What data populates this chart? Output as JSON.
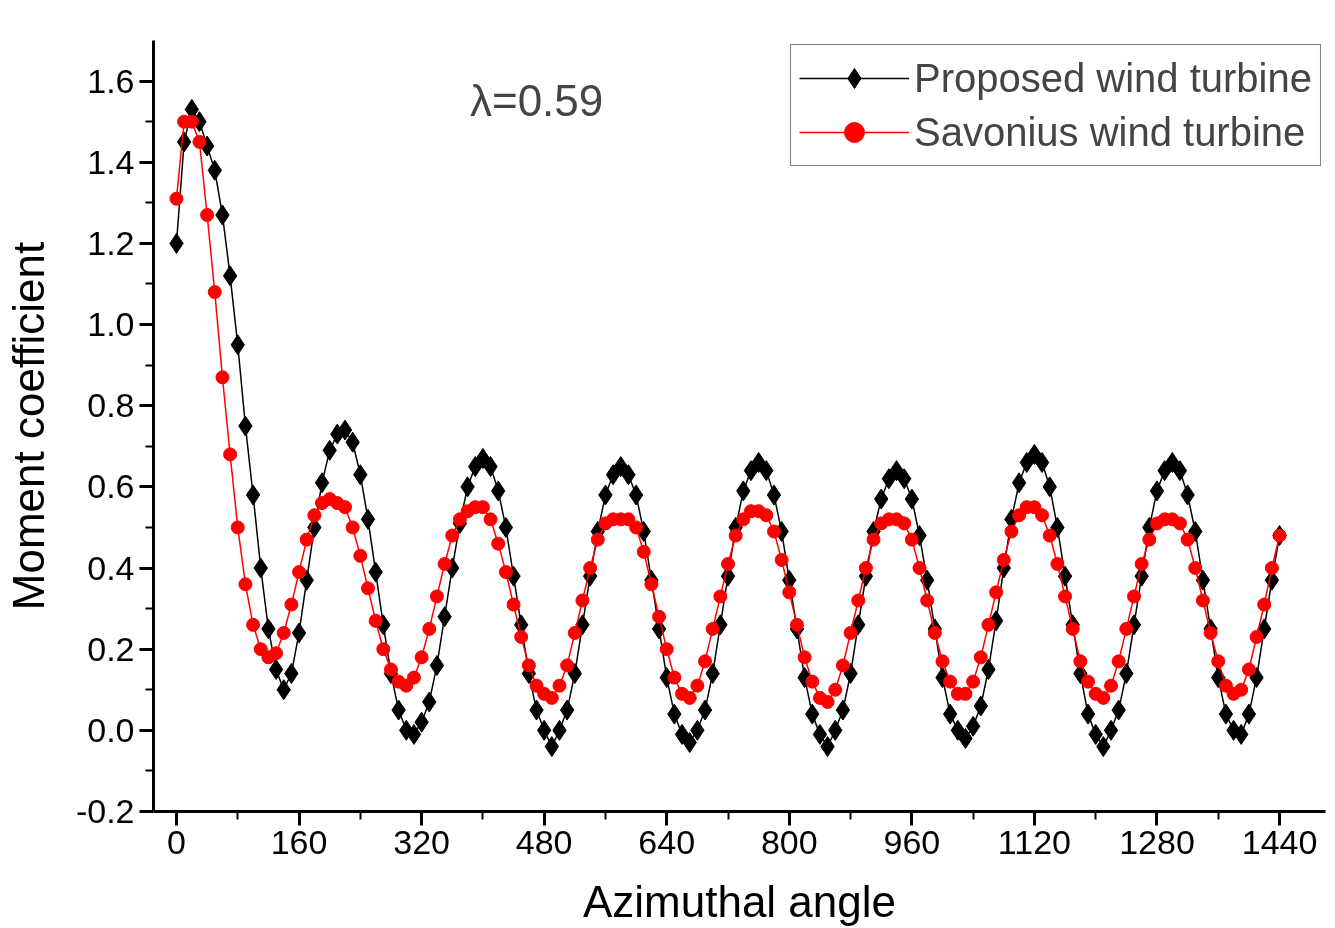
{
  "chart_data": {
    "type": "line",
    "xlabel": "Azimuthal angle",
    "ylabel": "Moment coefficient",
    "annotations": [
      "λ=0.59"
    ],
    "x": [
      0,
      10,
      20,
      30,
      40,
      50,
      60,
      70,
      80,
      90,
      100,
      110,
      120,
      130,
      140,
      150,
      160,
      170,
      180,
      190,
      200,
      210,
      220,
      230,
      240,
      250,
      260,
      270,
      280,
      290,
      300,
      310,
      320,
      330,
      340,
      350,
      360,
      370,
      380,
      390,
      400,
      410,
      420,
      430,
      440,
      450,
      460,
      470,
      480,
      490,
      500,
      510,
      520,
      530,
      540,
      550,
      560,
      570,
      580,
      590,
      600,
      610,
      620,
      630,
      640,
      650,
      660,
      670,
      680,
      690,
      700,
      710,
      720,
      730,
      740,
      750,
      760,
      770,
      780,
      790,
      800,
      810,
      820,
      830,
      840,
      850,
      860,
      870,
      880,
      890,
      900,
      910,
      920,
      930,
      940,
      950,
      960,
      970,
      980,
      990,
      1000,
      1010,
      1020,
      1030,
      1040,
      1050,
      1060,
      1070,
      1080,
      1090,
      1100,
      1110,
      1120,
      1130,
      1140,
      1150,
      1160,
      1170,
      1180,
      1190,
      1200,
      1210,
      1220,
      1230,
      1240,
      1250,
      1260,
      1270,
      1280,
      1290,
      1300,
      1310,
      1320,
      1330,
      1340,
      1350,
      1360,
      1370,
      1380,
      1390,
      1400,
      1410,
      1420,
      1430,
      1440
    ],
    "series": [
      {
        "name": "Proposed wind turbine",
        "color": "#000000",
        "marker": "diamond",
        "values": [
          1.2,
          1.45,
          1.53,
          1.5,
          1.44,
          1.38,
          1.27,
          1.12,
          0.95,
          0.75,
          0.58,
          0.4,
          0.25,
          0.15,
          0.1,
          0.14,
          0.24,
          0.37,
          0.5,
          0.61,
          0.69,
          0.73,
          0.74,
          0.71,
          0.63,
          0.52,
          0.39,
          0.26,
          0.14,
          0.05,
          0.0,
          -0.01,
          0.02,
          0.07,
          0.16,
          0.28,
          0.4,
          0.51,
          0.6,
          0.65,
          0.67,
          0.65,
          0.59,
          0.5,
          0.38,
          0.26,
          0.14,
          0.05,
          0.0,
          -0.04,
          0.0,
          0.05,
          0.14,
          0.26,
          0.38,
          0.49,
          0.58,
          0.63,
          0.65,
          0.63,
          0.58,
          0.49,
          0.37,
          0.25,
          0.13,
          0.04,
          -0.01,
          -0.03,
          0.0,
          0.05,
          0.14,
          0.26,
          0.38,
          0.5,
          0.59,
          0.64,
          0.66,
          0.64,
          0.58,
          0.49,
          0.37,
          0.25,
          0.13,
          0.04,
          -0.01,
          -0.04,
          0.0,
          0.05,
          0.14,
          0.26,
          0.38,
          0.49,
          0.57,
          0.62,
          0.64,
          0.62,
          0.57,
          0.48,
          0.37,
          0.25,
          0.13,
          0.04,
          0.0,
          -0.02,
          0.01,
          0.06,
          0.15,
          0.27,
          0.4,
          0.52,
          0.61,
          0.66,
          0.68,
          0.66,
          0.6,
          0.5,
          0.38,
          0.26,
          0.14,
          0.04,
          -0.01,
          -0.04,
          0.0,
          0.05,
          0.14,
          0.26,
          0.38,
          0.5,
          0.59,
          0.64,
          0.66,
          0.64,
          0.58,
          0.49,
          0.37,
          0.25,
          0.13,
          0.04,
          0.0,
          -0.01,
          0.04,
          0.13,
          0.25,
          0.37,
          0.48
        ]
      },
      {
        "name": "Savonius wind turbine",
        "color": "#ff0000",
        "marker": "circle",
        "values": [
          1.31,
          1.5,
          1.5,
          1.45,
          1.27,
          1.08,
          0.87,
          0.68,
          0.5,
          0.36,
          0.26,
          0.2,
          0.18,
          0.19,
          0.24,
          0.31,
          0.39,
          0.47,
          0.53,
          0.56,
          0.57,
          0.56,
          0.55,
          0.5,
          0.43,
          0.35,
          0.27,
          0.2,
          0.15,
          0.12,
          0.11,
          0.13,
          0.18,
          0.25,
          0.33,
          0.41,
          0.48,
          0.52,
          0.54,
          0.55,
          0.55,
          0.52,
          0.46,
          0.39,
          0.31,
          0.23,
          0.16,
          0.11,
          0.09,
          0.08,
          0.11,
          0.16,
          0.24,
          0.32,
          0.4,
          0.47,
          0.51,
          0.52,
          0.52,
          0.52,
          0.5,
          0.44,
          0.36,
          0.28,
          0.2,
          0.13,
          0.09,
          0.08,
          0.11,
          0.17,
          0.25,
          0.33,
          0.41,
          0.48,
          0.52,
          0.54,
          0.54,
          0.53,
          0.49,
          0.42,
          0.34,
          0.26,
          0.18,
          0.12,
          0.08,
          0.07,
          0.1,
          0.16,
          0.24,
          0.32,
          0.4,
          0.47,
          0.51,
          0.52,
          0.52,
          0.51,
          0.47,
          0.4,
          0.32,
          0.24,
          0.17,
          0.12,
          0.09,
          0.09,
          0.12,
          0.18,
          0.26,
          0.34,
          0.42,
          0.49,
          0.53,
          0.55,
          0.55,
          0.53,
          0.48,
          0.41,
          0.33,
          0.25,
          0.17,
          0.12,
          0.09,
          0.08,
          0.11,
          0.17,
          0.25,
          0.33,
          0.41,
          0.47,
          0.51,
          0.52,
          0.52,
          0.51,
          0.47,
          0.4,
          0.32,
          0.24,
          0.17,
          0.11,
          0.09,
          0.1,
          0.15,
          0.23,
          0.31,
          0.4,
          0.48
        ]
      }
    ],
    "xlim": [
      -30,
      1500
    ],
    "ylim": [
      -0.2,
      1.7
    ],
    "xticks": [
      0,
      160,
      320,
      480,
      640,
      800,
      960,
      1120,
      1280,
      1440
    ],
    "yticks": [
      {
        "value": -0.2,
        "label": "-0.2"
      },
      {
        "value": 0,
        "label": "0.0"
      },
      {
        "value": 0.2,
        "label": "0.2"
      },
      {
        "value": 0.4,
        "label": "0.4"
      },
      {
        "value": 0.6,
        "label": "0.6"
      },
      {
        "value": 0.8,
        "label": "0.8"
      },
      {
        "value": 1.0,
        "label": "1.0"
      },
      {
        "value": 1.2,
        "label": "1.2"
      },
      {
        "value": 1.4,
        "label": "1.4"
      },
      {
        "value": 1.6,
        "label": "1.6"
      }
    ],
    "legend": "top right",
    "grid": false,
    "line_style": "solid"
  }
}
